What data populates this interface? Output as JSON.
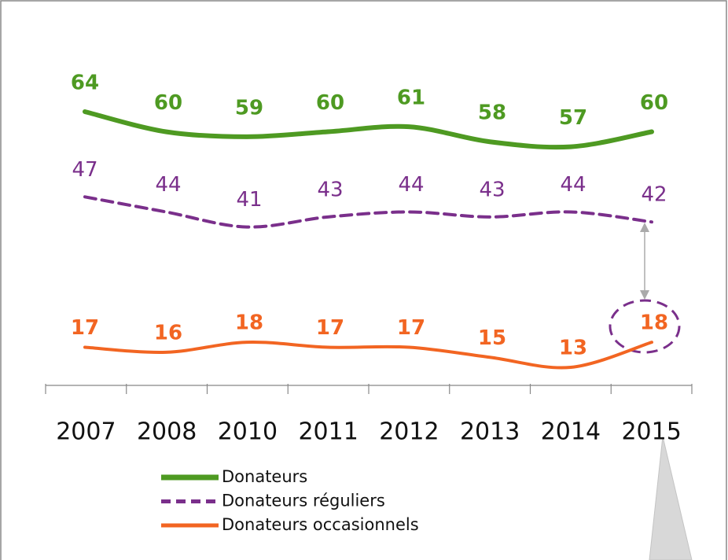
{
  "chart_data": {
    "type": "line",
    "categories": [
      "2007",
      "2008",
      "2010",
      "2011",
      "2012",
      "2013",
      "2014",
      "2015"
    ],
    "series": [
      {
        "name": "Donateurs",
        "color": "#4e9a22",
        "values": [
          64,
          60,
          59,
          60,
          61,
          58,
          57,
          60
        ]
      },
      {
        "name": "Donateurs réguliers",
        "color": "#7a2f8b",
        "values": [
          47,
          44,
          41,
          43,
          44,
          43,
          44,
          42
        ]
      },
      {
        "name": "Donateurs occasionnels",
        "color": "#f26522",
        "values": [
          17,
          16,
          18,
          17,
          17,
          15,
          13,
          18
        ]
      }
    ]
  }
}
